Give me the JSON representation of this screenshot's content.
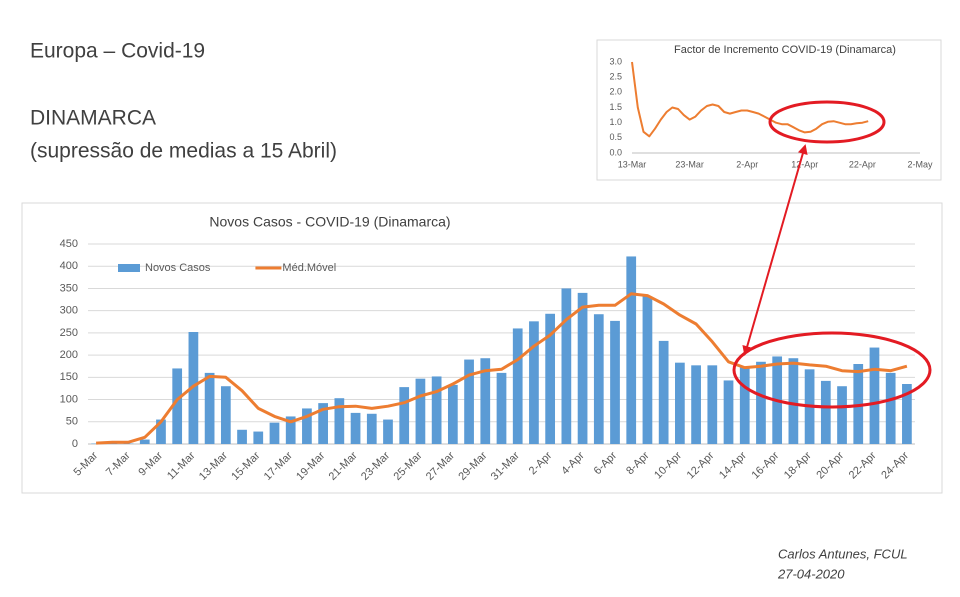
{
  "slide": {
    "heading": "Europa – Covid-19",
    "country": "DINAMARCA",
    "subtitle": "(supressão de medias a 15 Abril)",
    "author": "Carlos Antunes, FCUL",
    "date": "27-04-2020"
  },
  "chart_data": [
    {
      "type": "bar",
      "title": "Novos Casos - COVID-19 (Dinamarca)",
      "categories": [
        "5-Mar",
        null,
        "7-Mar",
        null,
        "9-Mar",
        null,
        "11-Mar",
        null,
        "13-Mar",
        null,
        "15-Mar",
        null,
        "17-Mar",
        null,
        "19-Mar",
        null,
        "21-Mar",
        null,
        "23-Mar",
        null,
        "25-Mar",
        null,
        "27-Mar",
        null,
        "29-Mar",
        null,
        "31-Mar",
        null,
        "2-Apr",
        null,
        "4-Apr",
        null,
        "6-Apr",
        null,
        "8-Apr",
        null,
        "10-Apr",
        null,
        "12-Apr",
        null,
        "14-Apr",
        null,
        "16-Apr",
        null,
        "18-Apr",
        null,
        "20-Apr",
        null,
        "22-Apr",
        null,
        "24-Apr"
      ],
      "series": [
        {
          "name": "Novos Casos",
          "type": "bar",
          "color": "#5b9bd5",
          "values": [
            1,
            3,
            1,
            10,
            55,
            170,
            252,
            160,
            130,
            32,
            28,
            48,
            62,
            80,
            92,
            103,
            70,
            68,
            55,
            128,
            147,
            152,
            133,
            190,
            193,
            160,
            260,
            276,
            293,
            350,
            340,
            292,
            277,
            422,
            332,
            232,
            183,
            177,
            177,
            143,
            173,
            185,
            197,
            193,
            168,
            142,
            130,
            180,
            217,
            160,
            135
          ]
        },
        {
          "name": "Méd.Móvel",
          "type": "line",
          "color": "#ed7d31",
          "values": [
            2,
            4,
            4,
            15,
            50,
            100,
            130,
            152,
            150,
            120,
            80,
            62,
            50,
            62,
            78,
            84,
            85,
            80,
            85,
            93,
            108,
            118,
            135,
            155,
            165,
            168,
            190,
            220,
            245,
            280,
            308,
            312,
            312,
            338,
            334,
            315,
            290,
            270,
            230,
            185,
            172,
            175,
            180,
            182,
            178,
            175,
            165,
            163,
            168,
            165,
            175
          ]
        }
      ],
      "ylim": [
        0,
        450
      ],
      "yticks": [
        0,
        50,
        100,
        150,
        200,
        250,
        300,
        350,
        400,
        450
      ],
      "grid": true,
      "legend": "top-left"
    },
    {
      "type": "line",
      "title": "Factor de Incremento COVID-19 (Dinamarca)",
      "categories": [
        "13-Mar",
        null,
        null,
        null,
        null,
        null,
        null,
        null,
        null,
        null,
        "23-Mar",
        null,
        null,
        null,
        null,
        null,
        null,
        null,
        null,
        null,
        "2-Apr",
        null,
        null,
        null,
        null,
        null,
        null,
        null,
        null,
        null,
        "12-Apr",
        null,
        null,
        null,
        null,
        null,
        null,
        null,
        null,
        null,
        "22-Apr",
        null,
        null,
        null,
        null,
        null,
        null,
        null,
        null,
        null,
        "2-May"
      ],
      "series": [
        {
          "color": "#ed7d31",
          "values": [
            3.0,
            1.5,
            0.7,
            0.55,
            0.8,
            1.1,
            1.35,
            1.5,
            1.45,
            1.25,
            1.1,
            1.2,
            1.4,
            1.55,
            1.6,
            1.55,
            1.35,
            1.3,
            1.35,
            1.4,
            1.4,
            1.35,
            1.3,
            1.2,
            1.1,
            1.0,
            0.95,
            0.95,
            0.85,
            0.75,
            0.68,
            0.7,
            0.8,
            0.95,
            1.03,
            1.05,
            1.0,
            0.95,
            0.95,
            0.98,
            1.0,
            1.05,
            null,
            null,
            null,
            null,
            null,
            null,
            null,
            null,
            null
          ]
        }
      ],
      "ylim": [
        0,
        3
      ],
      "yticks": [
        {
          "value": 0,
          "label": "0.0"
        },
        0.5,
        {
          "value": 1,
          "label": "1.0"
        },
        1.5,
        {
          "value": 2,
          "label": "2.0"
        },
        2.5,
        {
          "value": 3,
          "label": "3.0"
        }
      ],
      "grid": false
    }
  ]
}
